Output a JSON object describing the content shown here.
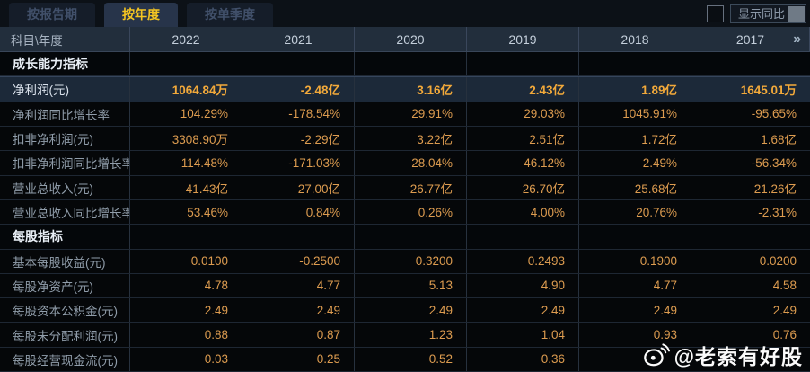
{
  "tabs": [
    {
      "label": "按报告期",
      "active": false
    },
    {
      "label": "按年度",
      "active": true
    },
    {
      "label": "按单季度",
      "active": false
    }
  ],
  "controls": {
    "show_yoy_label": "显示同比",
    "checkbox_checked": false
  },
  "table": {
    "corner_label": "科目\\年度",
    "years": [
      "2022",
      "2021",
      "2020",
      "2019",
      "2018",
      "2017"
    ],
    "more_columns_icon": "»",
    "rows": [
      {
        "type": "section",
        "label": "成长能力指标",
        "values": [
          "",
          "",
          "",
          "",
          "",
          ""
        ]
      },
      {
        "type": "data",
        "highlight": true,
        "label": "净利润(元)",
        "values": [
          "1064.84万",
          "-2.48亿",
          "3.16亿",
          "2.43亿",
          "1.89亿",
          "1645.01万"
        ]
      },
      {
        "type": "data",
        "label": "净利润同比增长率",
        "values": [
          "104.29%",
          "-178.54%",
          "29.91%",
          "29.03%",
          "1045.91%",
          "-95.65%"
        ]
      },
      {
        "type": "data",
        "label": "扣非净利润(元)",
        "values": [
          "3308.90万",
          "-2.29亿",
          "3.22亿",
          "2.51亿",
          "1.72亿",
          "1.68亿"
        ]
      },
      {
        "type": "data",
        "label": "扣非净利润同比增长率",
        "values": [
          "114.48%",
          "-171.03%",
          "28.04%",
          "46.12%",
          "2.49%",
          "-56.34%"
        ]
      },
      {
        "type": "data",
        "label": "营业总收入(元)",
        "values": [
          "41.43亿",
          "27.00亿",
          "26.77亿",
          "26.70亿",
          "25.68亿",
          "21.26亿"
        ]
      },
      {
        "type": "data",
        "label": "营业总收入同比增长率",
        "values": [
          "53.46%",
          "0.84%",
          "0.26%",
          "4.00%",
          "20.76%",
          "-2.31%"
        ]
      },
      {
        "type": "section",
        "label": "每股指标",
        "values": [
          "",
          "",
          "",
          "",
          "",
          ""
        ]
      },
      {
        "type": "data",
        "label": "基本每股收益(元)",
        "values": [
          "0.0100",
          "-0.2500",
          "0.3200",
          "0.2493",
          "0.1900",
          "0.0200"
        ]
      },
      {
        "type": "data",
        "label": "每股净资产(元)",
        "values": [
          "4.78",
          "4.77",
          "5.13",
          "4.90",
          "4.77",
          "4.58"
        ]
      },
      {
        "type": "data",
        "label": "每股资本公积金(元)",
        "values": [
          "2.49",
          "2.49",
          "2.49",
          "2.49",
          "2.49",
          "2.49"
        ]
      },
      {
        "type": "data",
        "label": "每股未分配利润(元)",
        "values": [
          "0.88",
          "0.87",
          "1.23",
          "1.04",
          "0.93",
          "0.76"
        ]
      },
      {
        "type": "data",
        "label": "每股经营现金流(元)",
        "values": [
          "0.03",
          "0.25",
          "0.52",
          "0.36",
          "",
          ""
        ]
      }
    ]
  },
  "watermark": {
    "text": "@老索有好股",
    "icon": "weibo"
  },
  "colors": {
    "tab_active_text": "#f4c522",
    "tab_active_bg": "#27344a",
    "header_bg": "#222e3c",
    "highlight_row_bg": "#1c2939",
    "highlight_value": "#f2a93a",
    "value_orange": "#dd9c50",
    "row_bg": "#050709"
  }
}
